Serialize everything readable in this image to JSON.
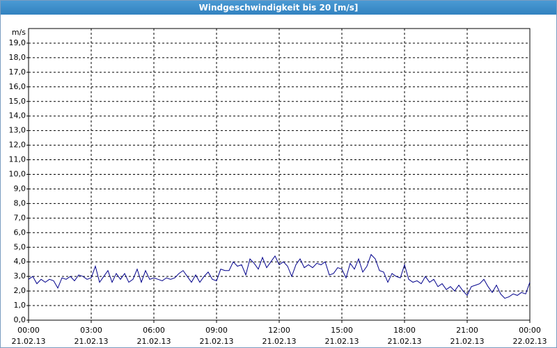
{
  "chart_data": {
    "type": "line",
    "title": "Windgeschwindigkeit bis 20 [m/s]",
    "y_label": "m/s",
    "ylim": [
      0,
      20
    ],
    "yticks": [
      {
        "value": 0,
        "label": "0,0"
      },
      {
        "value": 1,
        "label": "1,0"
      },
      {
        "value": 2,
        "label": "2,0"
      },
      {
        "value": 3,
        "label": "3,0"
      },
      {
        "value": 4,
        "label": "4,0"
      },
      {
        "value": 5,
        "label": "5,0"
      },
      {
        "value": 6,
        "label": "6,0"
      },
      {
        "value": 7,
        "label": "7,0"
      },
      {
        "value": 8,
        "label": "8,0"
      },
      {
        "value": 9,
        "label": "9,0"
      },
      {
        "value": 10,
        "label": "10,0"
      },
      {
        "value": 11,
        "label": "11,0"
      },
      {
        "value": 12,
        "label": "12,0"
      },
      {
        "value": 13,
        "label": "13,0"
      },
      {
        "value": 14,
        "label": "14,0"
      },
      {
        "value": 15,
        "label": "15,0"
      },
      {
        "value": 16,
        "label": "16,0"
      },
      {
        "value": 17,
        "label": "17,0"
      },
      {
        "value": 18,
        "label": "18,0"
      },
      {
        "value": 19,
        "label": "19,0"
      }
    ],
    "xlim": [
      0,
      24
    ],
    "xticks": [
      {
        "value": 0,
        "label": "00:00",
        "date": "21.02.13"
      },
      {
        "value": 3,
        "label": "03:00",
        "date": "21.02.13"
      },
      {
        "value": 6,
        "label": "06:00",
        "date": "21.02.13"
      },
      {
        "value": 9,
        "label": "09:00",
        "date": "21.02.13"
      },
      {
        "value": 12,
        "label": "12:00",
        "date": "21.02.13"
      },
      {
        "value": 15,
        "label": "15:00",
        "date": "21.02.13"
      },
      {
        "value": 18,
        "label": "18:00",
        "date": "21.02.13"
      },
      {
        "value": 21,
        "label": "21:00",
        "date": "21.02.13"
      },
      {
        "value": 24,
        "label": "00:00",
        "date": "22.02.13"
      }
    ],
    "grid": true,
    "x": [
      0,
      0.2,
      0.4,
      0.6,
      0.8,
      1,
      1.2,
      1.4,
      1.6,
      1.8,
      2,
      2.2,
      2.4,
      2.6,
      2.8,
      3,
      3.2,
      3.4,
      3.6,
      3.8,
      4,
      4.2,
      4.4,
      4.6,
      4.8,
      5,
      5.2,
      5.4,
      5.6,
      5.8,
      6,
      6.2,
      6.4,
      6.6,
      6.8,
      7,
      7.2,
      7.4,
      7.6,
      7.8,
      8,
      8.2,
      8.4,
      8.6,
      8.8,
      9,
      9.2,
      9.4,
      9.6,
      9.8,
      10,
      10.2,
      10.4,
      10.6,
      10.8,
      11,
      11.2,
      11.4,
      11.6,
      11.8,
      12,
      12.2,
      12.4,
      12.6,
      12.8,
      13,
      13.2,
      13.4,
      13.6,
      13.8,
      14,
      14.2,
      14.4,
      14.6,
      14.8,
      15,
      15.2,
      15.4,
      15.6,
      15.8,
      16,
      16.2,
      16.4,
      16.6,
      16.8,
      17,
      17.2,
      17.4,
      17.6,
      17.8,
      18,
      18.2,
      18.4,
      18.6,
      18.8,
      19,
      19.2,
      19.4,
      19.6,
      19.8,
      20,
      20.2,
      20.4,
      20.6,
      20.8,
      21,
      21.2,
      21.4,
      21.6,
      21.8,
      22,
      22.2,
      22.4,
      22.6,
      22.8,
      23,
      23.2,
      23.4,
      23.6,
      23.8,
      24
    ],
    "series": [
      {
        "color": "#00008b",
        "values": [
          2.8,
          3.0,
          2.5,
          2.8,
          2.6,
          2.8,
          2.7,
          2.2,
          2.9,
          2.8,
          3.0,
          2.7,
          3.1,
          3.0,
          2.8,
          2.9,
          3.7,
          2.6,
          3.0,
          3.4,
          2.6,
          3.2,
          2.8,
          3.2,
          2.6,
          2.8,
          3.5,
          2.6,
          3.4,
          2.8,
          2.9,
          2.8,
          2.7,
          2.9,
          2.8,
          2.9,
          3.2,
          3.4,
          3.0,
          2.6,
          3.1,
          2.6,
          3.0,
          3.3,
          2.8,
          2.7,
          3.5,
          3.4,
          3.4,
          4.0,
          3.7,
          3.8,
          3.1,
          4.2,
          3.9,
          3.5,
          4.3,
          3.6,
          4.0,
          4.4,
          3.8,
          4.0,
          3.7,
          3.0,
          3.8,
          4.2,
          3.6,
          3.8,
          3.6,
          3.9,
          3.8,
          4.0,
          3.1,
          3.2,
          3.6,
          3.5,
          2.9,
          3.9,
          3.5,
          4.2,
          3.3,
          3.7,
          4.5,
          4.2,
          3.4,
          3.3,
          2.6,
          3.2,
          3.0,
          2.9,
          3.8,
          2.8,
          2.6,
          2.7,
          2.5,
          3.0,
          2.6,
          2.8,
          2.3,
          2.5,
          2.1,
          2.3,
          2.0,
          2.4,
          2.0,
          1.7,
          2.3,
          2.4,
          2.5,
          2.8,
          2.3,
          1.9,
          2.4,
          1.8,
          1.5,
          1.6,
          1.8,
          1.7,
          1.9,
          1.8,
          2.6
        ]
      }
    ]
  }
}
